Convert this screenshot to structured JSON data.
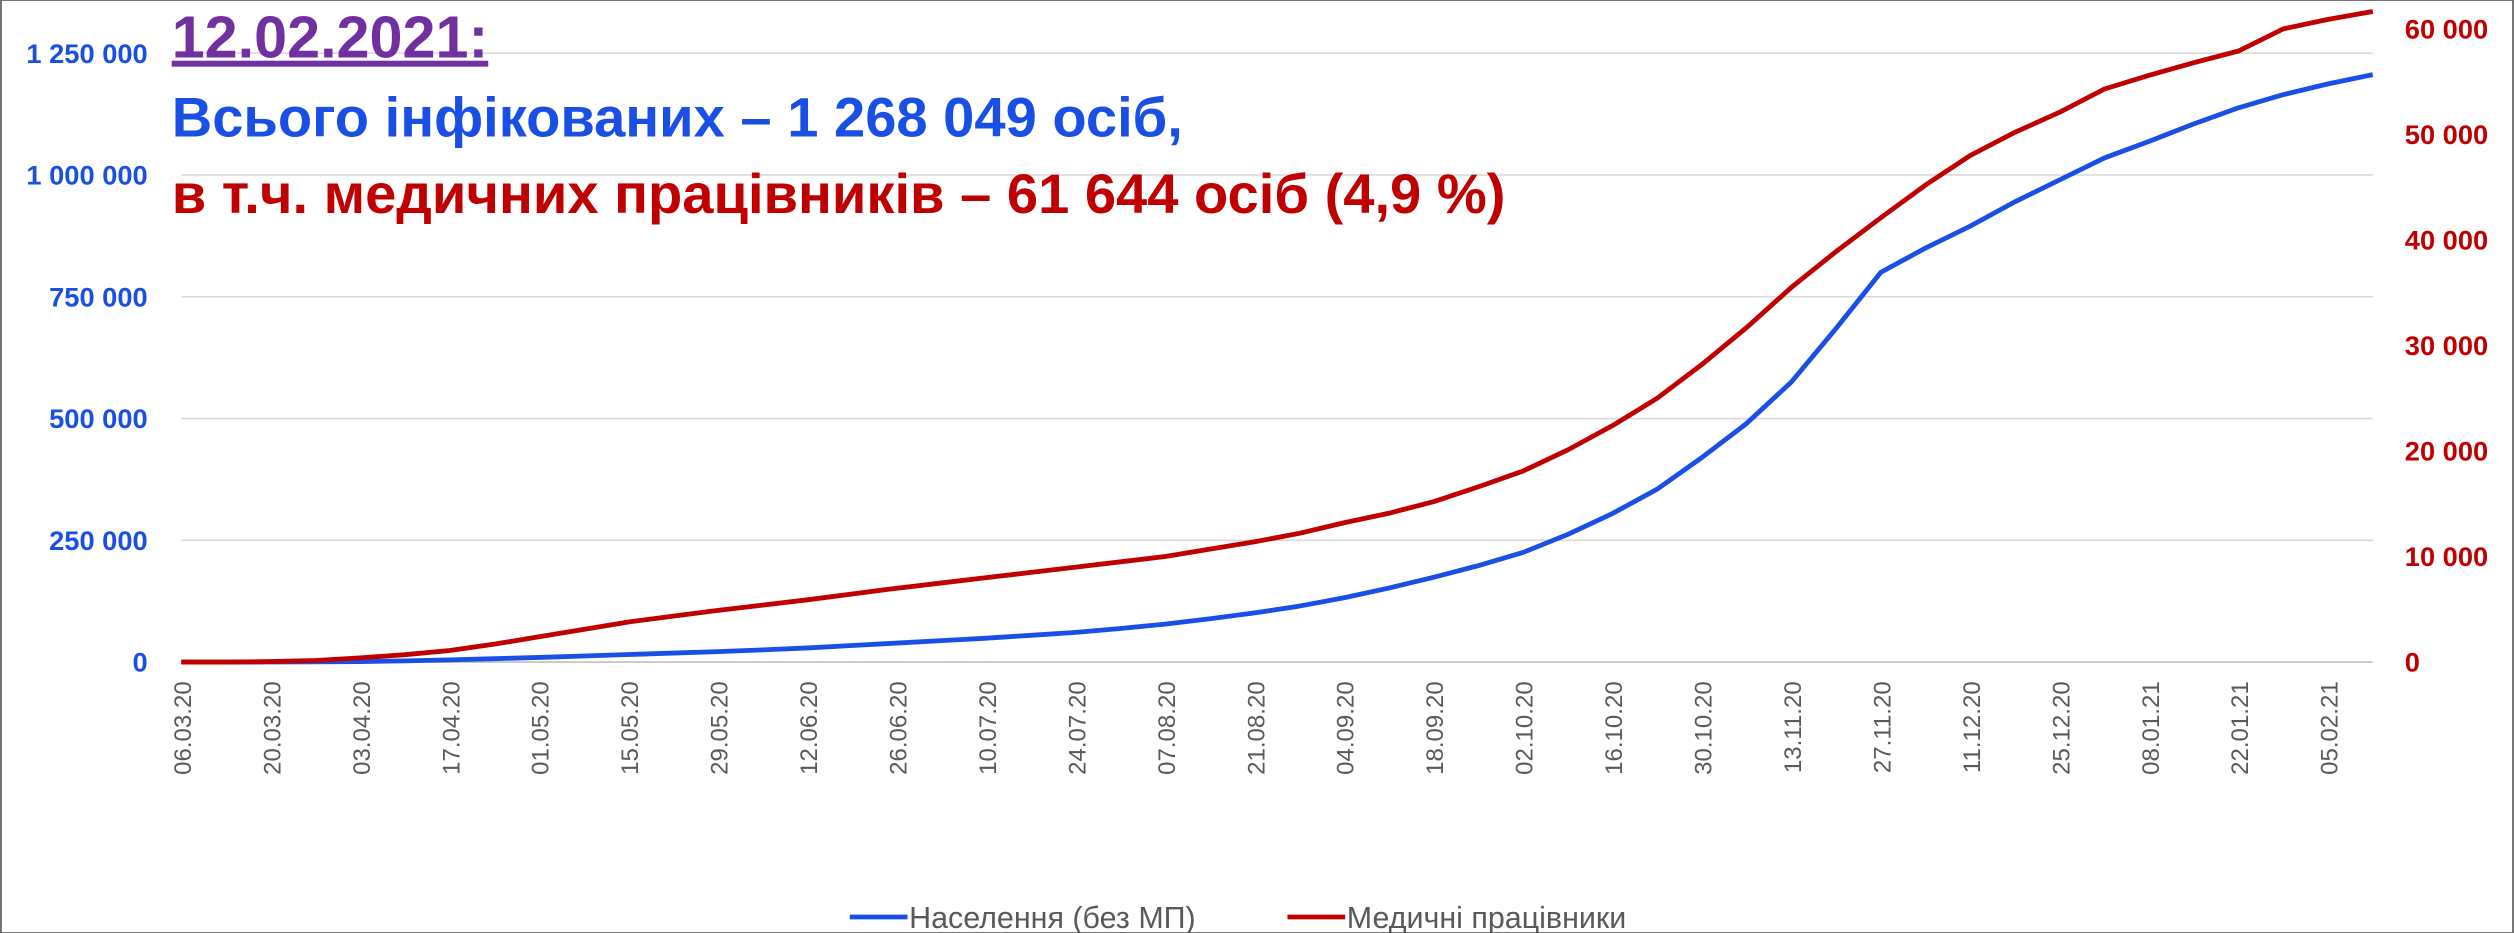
{
  "chart_data": {
    "type": "line",
    "title": "12.02.2021:",
    "annotations": [
      "Всього інфікованих – 1 268 049 осіб,",
      "в т.ч. медичних працівників – 61 644 осіб (4,9 %)"
    ],
    "categories": [
      "06.03.20",
      null,
      "20.03.20",
      null,
      "03.04.20",
      null,
      "17.04.20",
      null,
      "01.05.20",
      null,
      "15.05.20",
      null,
      "29.05.20",
      null,
      "12.06.20",
      null,
      "26.06.20",
      null,
      "10.07.20",
      null,
      "24.07.20",
      null,
      "07.08.20",
      null,
      "21.08.20",
      null,
      "04.09.20",
      null,
      "18.09.20",
      null,
      "02.10.20",
      null,
      "16.10.20",
      null,
      "30.10.20",
      null,
      "13.11.20",
      null,
      "27.11.20",
      null,
      "11.12.20",
      null,
      "25.12.20",
      null,
      "08.01.21",
      null,
      "22.01.21",
      null,
      "05.02.21",
      null
    ],
    "series": [
      {
        "name": "Населення (без МП)",
        "color": "#1a4fe6",
        "values": [
          0,
          0,
          100,
          400,
          1000,
          2500,
          4500,
          7000,
          9500,
          12500,
          15500,
          18500,
          21500,
          25000,
          29000,
          34000,
          39000,
          44000,
          49000,
          55000,
          61000,
          69000,
          78000,
          89000,
          101000,
          115000,
          132000,
          152000,
          174000,
          198000,
          225000,
          262000,
          305000,
          355000,
          420000,
          490000,
          575000,
          685000,
          800000,
          850000,
          895000,
          945000,
          990000,
          1035000,
          1069000,
          1105000,
          1138000,
          1165000,
          1187000,
          1206000
        ]
      },
      {
        "name": "Медичні працівники",
        "color": "#c00000",
        "axis": "y2",
        "values": [
          0,
          0,
          50,
          150,
          400,
          700,
          1100,
          1700,
          2400,
          3100,
          3800,
          4350,
          4900,
          5400,
          5900,
          6450,
          7000,
          7500,
          8000,
          8500,
          9000,
          9500,
          10000,
          10700,
          11400,
          12200,
          13200,
          14100,
          15200,
          16600,
          18100,
          20100,
          22400,
          25000,
          28200,
          31700,
          35500,
          38900,
          42100,
          45200,
          48000,
          50200,
          52100,
          54300,
          55600,
          56800,
          57900,
          60000,
          60900,
          61644
        ]
      }
    ],
    "ylim": [
      0,
      1300000
    ],
    "yticks": [
      0,
      {
        "value": 250000,
        "label": "250 000"
      },
      {
        "value": 500000,
        "label": "500 000"
      },
      {
        "value": 750000,
        "label": "750 000"
      },
      {
        "value": 1000000,
        "label": "1 000 000"
      },
      {
        "value": 1250000,
        "label": "1 250 000"
      }
    ],
    "y2lim": [
      0,
      60000
    ],
    "y2ticks": [
      0,
      {
        "value": 10000,
        "label": "10 000"
      },
      {
        "value": 20000,
        "label": "20 000"
      },
      {
        "value": 30000,
        "label": "30 000"
      },
      {
        "value": 40000,
        "label": "40 000"
      },
      {
        "value": 50000,
        "label": "50 000"
      },
      {
        "value": 60000,
        "label": "60 000"
      }
    ],
    "grid": true,
    "legend": "bottom"
  }
}
